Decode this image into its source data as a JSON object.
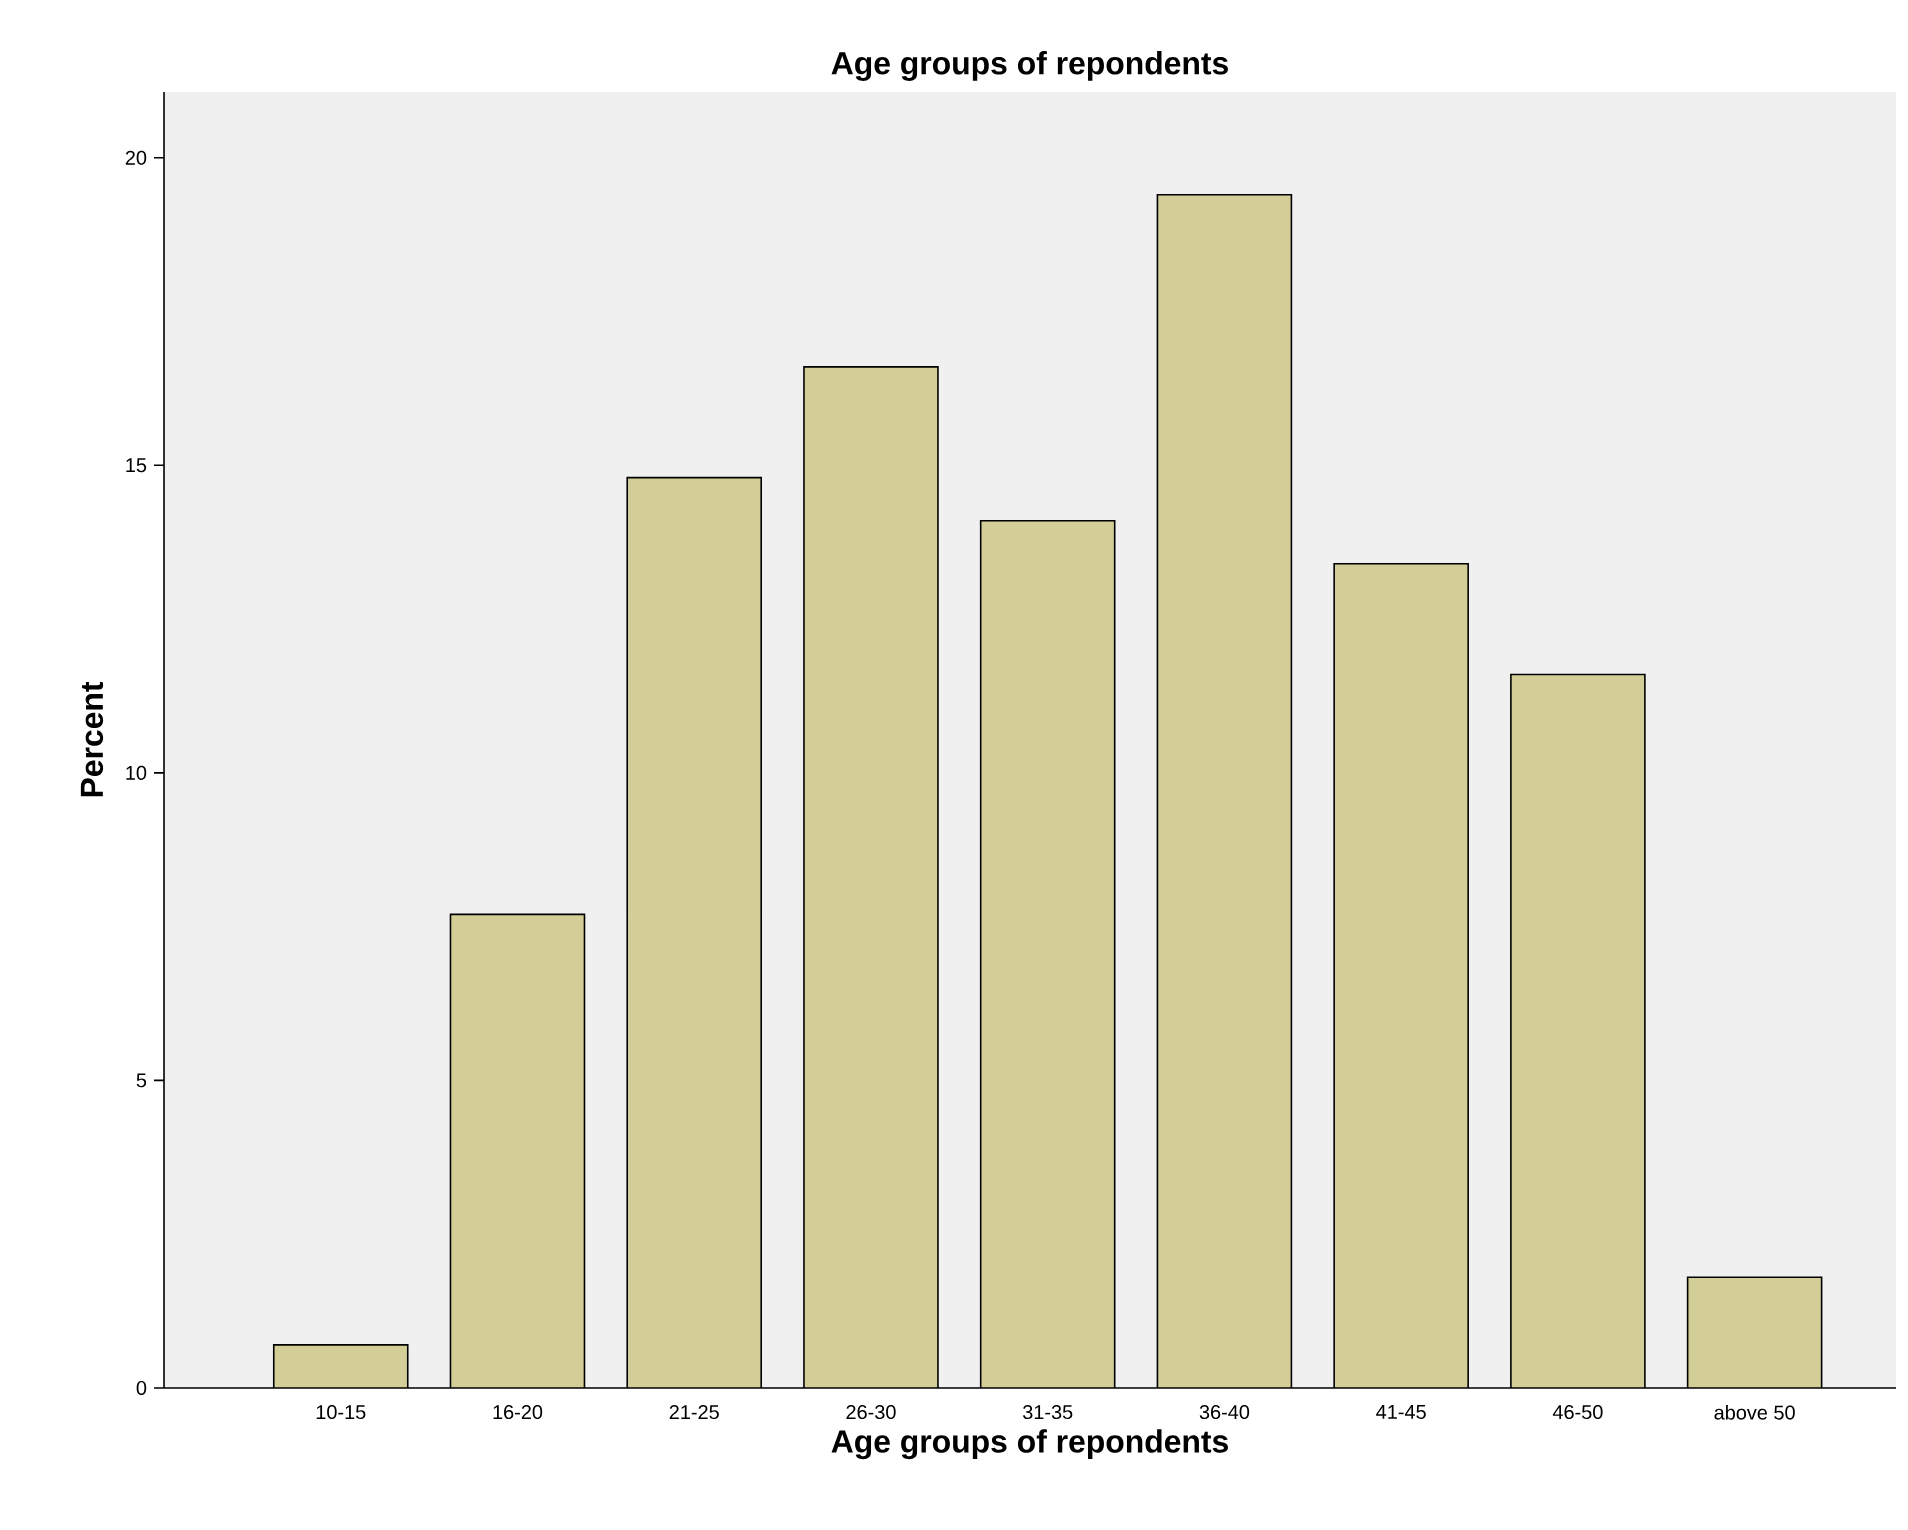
{
  "chart_data": {
    "type": "bar",
    "title": "Age groups of repondents",
    "xlabel": "Age groups of repondents",
    "ylabel": "Percent",
    "categories": [
      "10-15",
      "16-20",
      "21-25",
      "26-30",
      "31-35",
      "36-40",
      "41-45",
      "46-50",
      "above 50"
    ],
    "values": [
      0.7,
      7.7,
      14.8,
      16.6,
      14.1,
      19.4,
      13.4,
      11.6,
      1.8
    ],
    "color": "#d3ce97",
    "ylim": [
      0,
      21.07
    ],
    "yticks": [
      0,
      5,
      10,
      15,
      20
    ]
  }
}
